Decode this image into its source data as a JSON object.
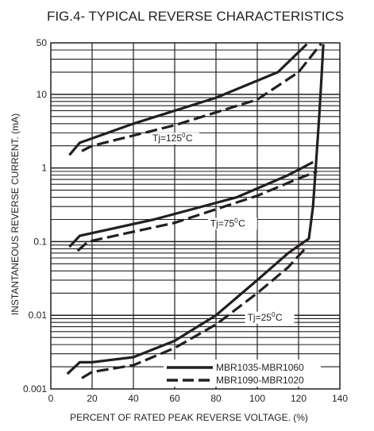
{
  "chart_data": {
    "type": "line",
    "title": "FIG.4- TYPICAL REVERSE CHARACTERISTICS",
    "xlabel": "PERCENT OF RATED PEAK REVERSE VOLTAGE. (%)",
    "ylabel": "INSTANTANEOUS REVERSE CURRENT. (mA)",
    "x_scale": "linear",
    "y_scale": "log",
    "xlim": [
      0,
      140
    ],
    "ylim": [
      0.001,
      50
    ],
    "x_ticks": [
      "0",
      "20",
      "40",
      "60",
      "80",
      "100",
      "120",
      "140"
    ],
    "y_ticks": [
      "0.001",
      "0.01",
      "0.1",
      "1",
      "10",
      "50"
    ],
    "grid": true,
    "annotations": [
      {
        "label": "Tj=125",
        "sup": "0",
        "unit": "C",
        "x": 60,
        "y": 2.3
      },
      {
        "label": "Tj=75",
        "sup": "0",
        "unit": "C",
        "x": 88,
        "y": 0.16
      },
      {
        "label": "Tj=25",
        "sup": "0",
        "unit": "C",
        "x": 106,
        "y": 0.0085
      }
    ],
    "legend": {
      "position": "bottom-right",
      "entries": [
        {
          "name": "MBR1035-MBR1060",
          "style": "solid"
        },
        {
          "name": "MBR1090-MBR1020",
          "style": "dashed"
        }
      ]
    },
    "series": [
      {
        "name": "MBR1035-MBR1060",
        "condition": "Tj=125C",
        "style": "solid",
        "points": [
          [
            9,
            1.5
          ],
          [
            14,
            2.2
          ],
          [
            40,
            4
          ],
          [
            80,
            9
          ],
          [
            110,
            20
          ],
          [
            124,
            48
          ]
        ]
      },
      {
        "name": "MBR1090-MBR1020",
        "condition": "Tj=125C",
        "style": "dashed",
        "points": [
          [
            15,
            1.7
          ],
          [
            20,
            2
          ],
          [
            60,
            3.8
          ],
          [
            100,
            8.5
          ],
          [
            120,
            20
          ],
          [
            131,
            49
          ]
        ]
      },
      {
        "name": "MBR1035-MBR1060",
        "condition": "Tj=75C",
        "style": "solid",
        "points": [
          [
            9,
            0.085
          ],
          [
            14,
            0.12
          ],
          [
            50,
            0.2
          ],
          [
            90,
            0.4
          ],
          [
            115,
            0.8
          ],
          [
            127,
            1.2
          ]
        ]
      },
      {
        "name": "MBR1090-MBR1020",
        "condition": "Tj=75C",
        "style": "dashed",
        "points": [
          [
            13,
            0.075
          ],
          [
            18,
            0.1
          ],
          [
            60,
            0.18
          ],
          [
            100,
            0.42
          ],
          [
            120,
            0.72
          ],
          [
            129,
            0.9
          ]
        ]
      },
      {
        "name": "MBR1035-MBR1060",
        "condition": "Tj=25C",
        "style": "solid",
        "points": [
          [
            8,
            0.0016
          ],
          [
            14,
            0.0023
          ],
          [
            20,
            0.0023
          ],
          [
            40,
            0.0027
          ],
          [
            60,
            0.0045
          ],
          [
            80,
            0.01
          ],
          [
            100,
            0.03
          ],
          [
            115,
            0.07
          ],
          [
            125,
            0.11
          ],
          [
            127,
            0.3
          ],
          [
            128.5,
            1.2
          ],
          [
            130,
            5
          ],
          [
            131,
            15
          ],
          [
            132,
            48
          ]
        ]
      },
      {
        "name": "MBR1090-MBR1020",
        "condition": "Tj=25C",
        "style": "dashed",
        "points": [
          [
            15,
            0.0014
          ],
          [
            20,
            0.0017
          ],
          [
            40,
            0.0021
          ],
          [
            60,
            0.0036
          ],
          [
            80,
            0.0075
          ],
          [
            100,
            0.02
          ],
          [
            115,
            0.045
          ],
          [
            124,
            0.085
          ]
        ]
      }
    ]
  }
}
